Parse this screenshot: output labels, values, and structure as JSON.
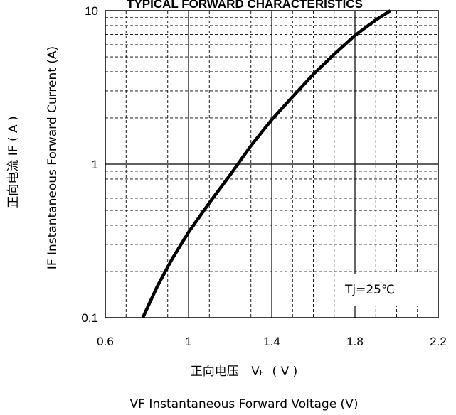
{
  "chart_data": {
    "type": "line",
    "title": "TYPICAL FORWARD CHARACTERISTICS",
    "xlabel_cn": "正向电压",
    "xlabel_sym_main": "V",
    "xlabel_sym_sub": "F",
    "xlabel_unit": "( V )",
    "xlabel_en": "VF  Instantaneous Forward Voltage (V)",
    "ylabel_cn": "正向电流  IF ( A )",
    "ylabel_en": "IF Instantaneous Forward Current (A)",
    "annotation": "Tj=25℃",
    "xlim": [
      0.6,
      2.2
    ],
    "ylim": [
      0.1,
      10
    ],
    "yscale": "log",
    "grid": true,
    "x_ticks": [
      "0.6",
      "1",
      "1.4",
      "1.8",
      "2.2"
    ],
    "x_tick_values": [
      0.6,
      1.0,
      1.4,
      1.8,
      2.2
    ],
    "y_ticks": [
      "0.1",
      "1",
      "10"
    ],
    "y_tick_values": [
      0.1,
      1,
      10
    ],
    "series": [
      {
        "x": [
          0.78,
          0.85,
          0.92,
          1.0,
          1.1,
          1.2,
          1.3,
          1.4,
          1.5,
          1.6,
          1.7,
          1.8,
          1.9,
          1.97
        ],
        "y": [
          0.1,
          0.16,
          0.24,
          0.36,
          0.56,
          0.85,
          1.32,
          1.95,
          2.75,
          3.85,
          5.2,
          6.9,
          8.7,
          10.0
        ]
      }
    ]
  }
}
